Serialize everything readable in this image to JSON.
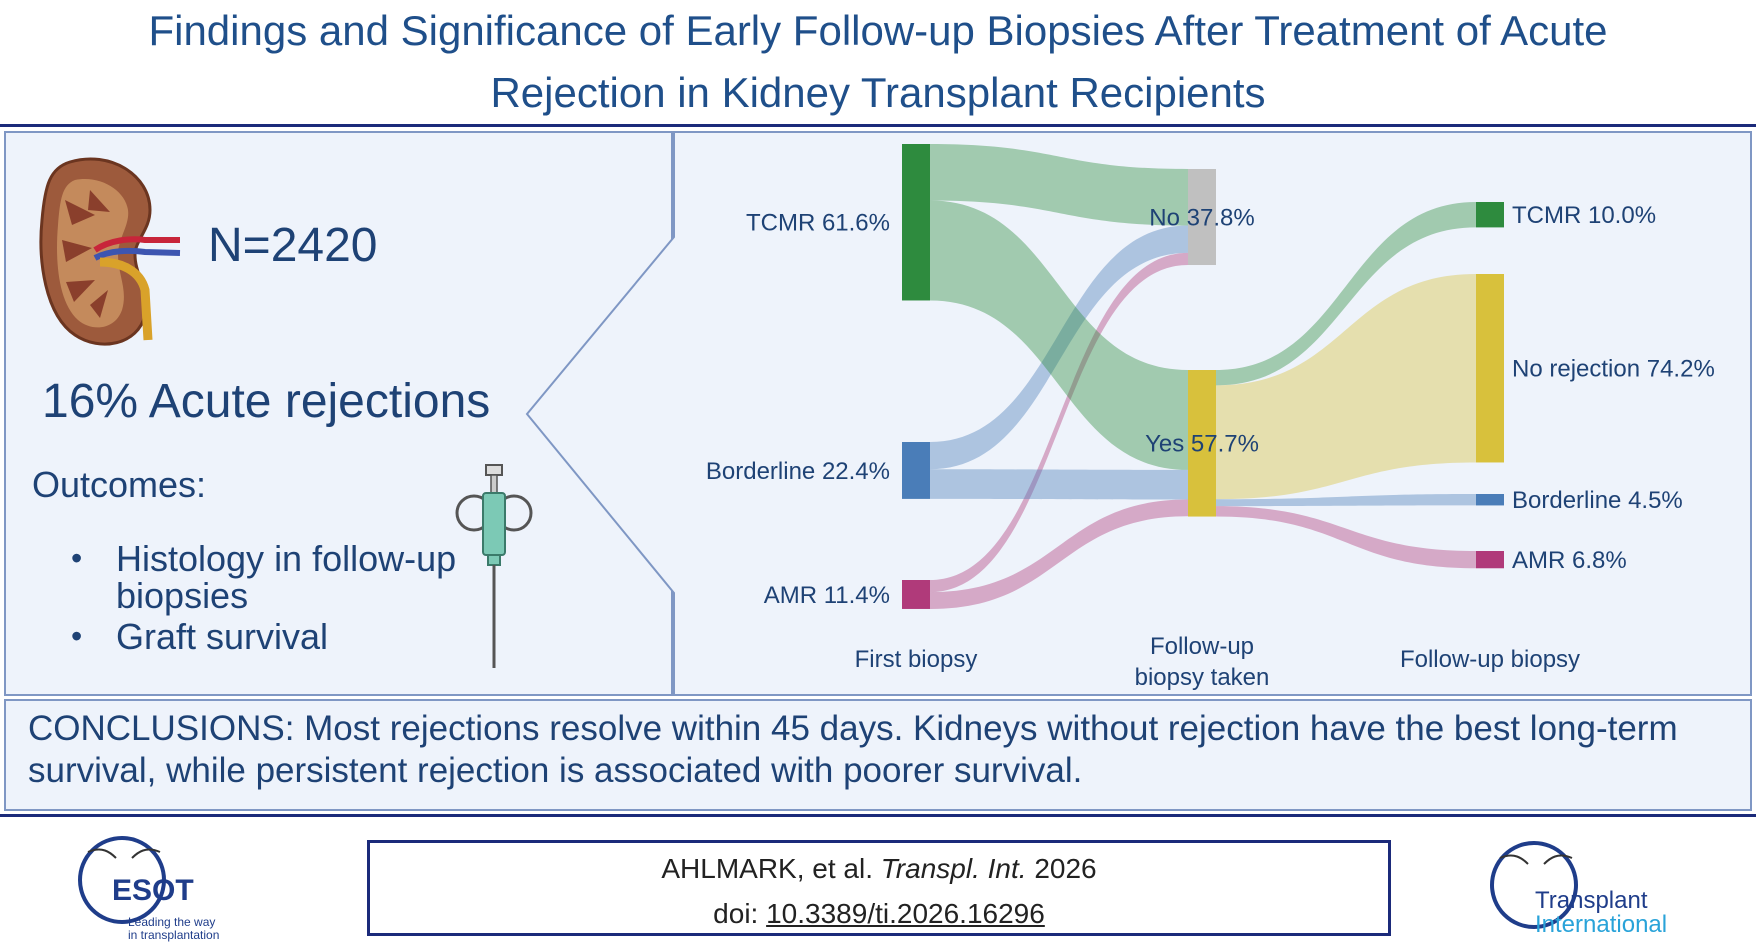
{
  "title": {
    "line1": "Findings and Significance of Early Follow-up Biopsies After Treatment of Acute",
    "line2": "Rejection in Kidney Transplant Recipients"
  },
  "summary": {
    "n": "N=2420",
    "acute": "16% Acute rejections",
    "outcomes_heading": "Outcomes:",
    "outcomes": [
      "Histology in follow-up biopsies",
      "Graft survival"
    ],
    "icons": [
      "kidney-icon",
      "biopsy-needle-icon"
    ]
  },
  "chart_data": {
    "type": "sankey",
    "columns": [
      {
        "label": "First biopsy",
        "nodes": [
          {
            "name": "TCMR",
            "label": "TCMR 61.6%",
            "value": 61.6,
            "color": "#2e8b3e"
          },
          {
            "name": "Borderline",
            "label": "Borderline 22.4%",
            "value": 22.4,
            "color": "#4a7db8"
          },
          {
            "name": "AMR",
            "label": "AMR 11.4%",
            "value": 11.4,
            "color": "#b03a7a"
          }
        ]
      },
      {
        "label": "Follow-up\nbiopsy taken",
        "nodes": [
          {
            "name": "No",
            "label": "No 37.8%",
            "value": 37.8,
            "color": "#c0c0c0"
          },
          {
            "name": "Yes",
            "label": "Yes 57.7%",
            "value": 57.7,
            "color": "#d8c13c"
          }
        ]
      },
      {
        "label": "Follow-up biopsy",
        "nodes": [
          {
            "name": "TCMR",
            "label": "TCMR 10.0%",
            "value": 10.0,
            "color": "#2e8b3e"
          },
          {
            "name": "No rejection",
            "label": "No rejection 74.2%",
            "value": 74.2,
            "color": "#d8c13c"
          },
          {
            "name": "Borderline",
            "label": "Borderline 4.5%",
            "value": 4.5,
            "color": "#4a7db8"
          },
          {
            "name": "AMR",
            "label": "AMR 6.8%",
            "value": 6.8,
            "color": "#b03a7a"
          }
        ]
      }
    ]
  },
  "conclusion": "CONCLUSIONS: Most rejections resolve within 45 days. Kidneys without rejection have the best long-term survival, while persistent rejection is associated with poorer survival.",
  "citation": {
    "authors": "AHLMARK, et al.",
    "journal": "Transpl. Int.",
    "year": "2026",
    "doi_prefix": "doi:",
    "doi": "10.3389/ti.2026.16296"
  },
  "logos": {
    "esot": {
      "name": "ESOT",
      "tagline1": "Leading the way",
      "tagline2": "in transplantation"
    },
    "ti": {
      "line1": "Transplant",
      "line2": "International"
    }
  },
  "colors": {
    "title": "#1f4f8a",
    "panel_bg": "#eef3fb",
    "border": "#1b2a7a",
    "tcmr": "#2e8b3e",
    "borderline": "#4a7db8",
    "amr": "#b03a7a",
    "no": "#c0c0c0",
    "yes": "#d8c13c"
  }
}
